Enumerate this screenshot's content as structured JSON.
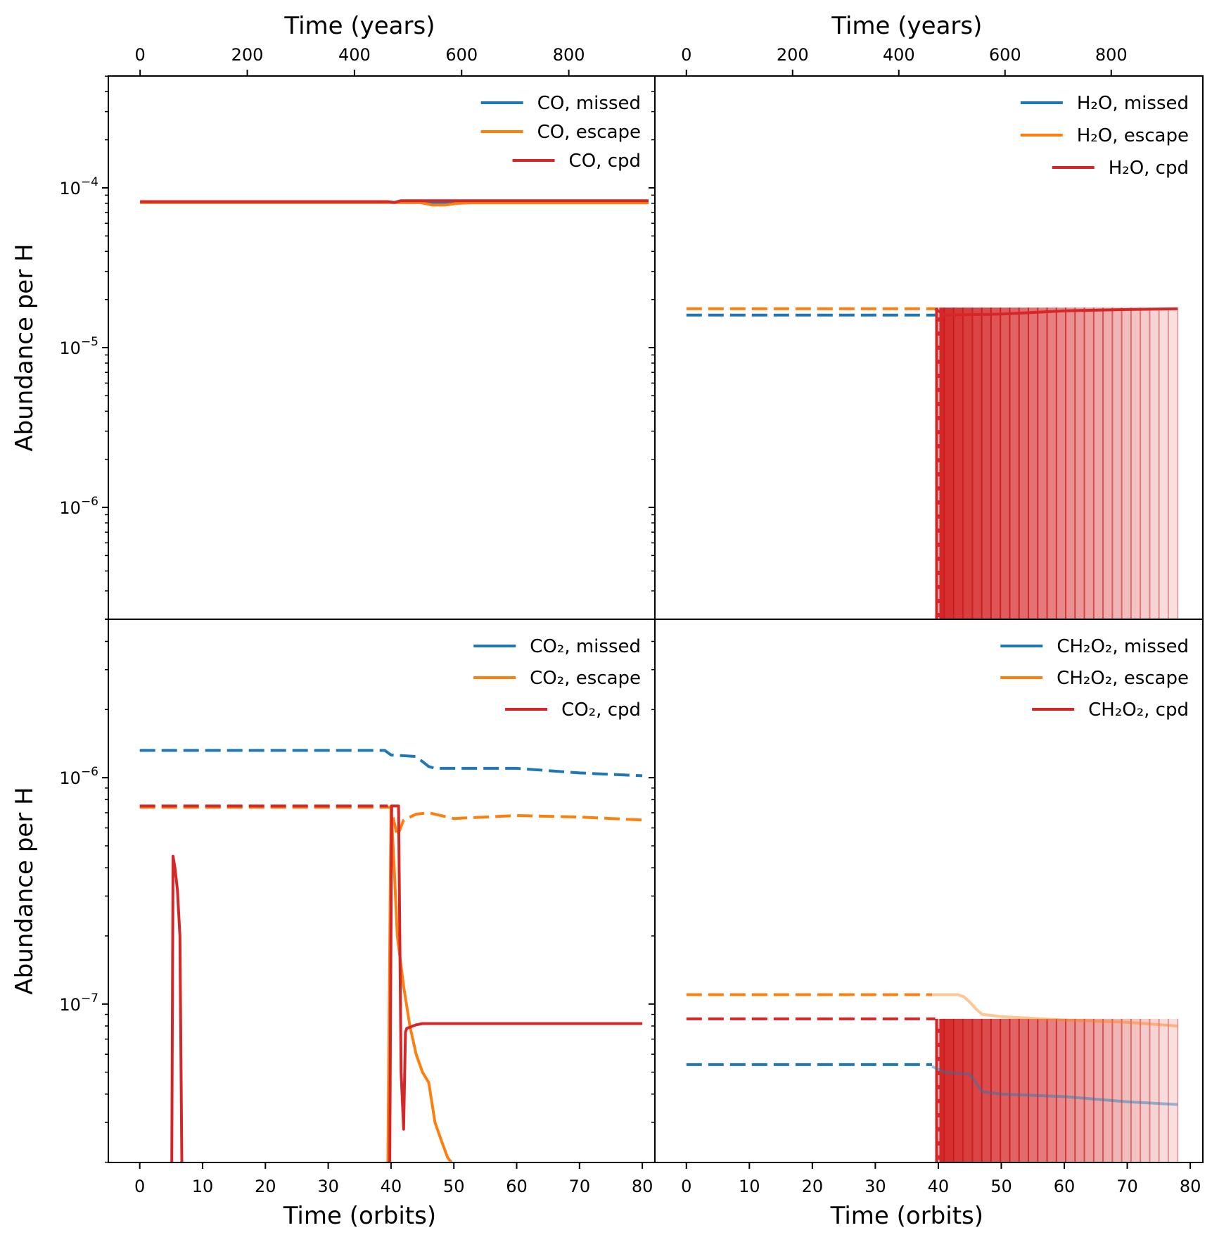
{
  "figure": {
    "top_axis_label": "Time (years)",
    "bottom_axis_label": "Time (orbits)",
    "y_axis_label": "Abundance per H",
    "years_ticks": [
      0,
      200,
      400,
      600,
      800
    ],
    "orbit_ticks": [
      0,
      10,
      20,
      30,
      40,
      50,
      60,
      70,
      80
    ],
    "colors": {
      "missed": "#1f77b4",
      "escape": "#ff7f0e",
      "cpd": "#d62728"
    }
  },
  "chart_data": [
    {
      "id": "co",
      "type": "line",
      "xlabel": "Time (orbits)",
      "top_xlabel": "Time (years)",
      "ylabel": "Abundance per H",
      "xlim": [
        -5,
        81
      ],
      "ylim_log10": [
        -6.7,
        -3.3
      ],
      "y_ticks": [
        {
          "exp": -4,
          "label": "−4"
        },
        {
          "exp": -5,
          "label": "−5"
        },
        {
          "exp": -6,
          "label": "−6"
        }
      ],
      "legend": [
        "CO, missed",
        "CO, escape",
        "CO, cpd"
      ],
      "series": [
        {
          "name": "CO, missed",
          "role": "missed",
          "dash": false,
          "x": [
            0,
            80
          ],
          "y": [
            8.1e-05,
            8.1e-05
          ]
        },
        {
          "name": "CO, escape",
          "role": "escape",
          "dash": false,
          "x": [
            0,
            44,
            46,
            48,
            50,
            52,
            80
          ],
          "y": [
            8.1e-05,
            8.1e-05,
            7.8e-05,
            7.8e-05,
            8e-05,
            8.05e-05,
            8.05e-05
          ]
        },
        {
          "name": "CO, cpd",
          "role": "cpd",
          "dash": false,
          "x": [
            0,
            39,
            40,
            41,
            80
          ],
          "y": [
            8.2e-05,
            8.2e-05,
            8.1e-05,
            8.3e-05,
            8.3e-05
          ]
        }
      ]
    },
    {
      "id": "h2o",
      "type": "line",
      "xlabel": "Time (orbits)",
      "top_xlabel": "Time (years)",
      "ylabel": "Abundance per H",
      "xlim": [
        -5,
        82
      ],
      "ylim_log10": [
        -6.7,
        -3.3
      ],
      "y_ticks": [],
      "legend": [
        "H₂O, missed",
        "H₂O, escape",
        "H₂O, cpd"
      ],
      "series": [
        {
          "name": "H₂O, missed",
          "role": "missed",
          "dash": true,
          "x": [
            0,
            39.5
          ],
          "y": [
            1.6e-05,
            1.6e-05
          ]
        },
        {
          "name": "H₂O, escape",
          "role": "escape",
          "dash": true,
          "x": [
            0,
            39.5
          ],
          "y": [
            1.75e-05,
            1.75e-05
          ]
        },
        {
          "name": "H₂O, cpd",
          "role": "cpd",
          "dash": false,
          "x": [
            39.5,
            41,
            50,
            60,
            70,
            78
          ],
          "y": [
            1.75e-05,
            1.6e-05,
            1.62e-05,
            1.7e-05,
            1.73e-05,
            1.75e-05
          ]
        }
      ],
      "cpd_band": {
        "x_start": 39.5,
        "x_end": 78,
        "top": 1.78e-05
      }
    },
    {
      "id": "co2",
      "type": "line",
      "xlabel": "Time (orbits)",
      "top_xlabel": "Time (years)",
      "ylabel": "Abundance per H",
      "xlim": [
        -5,
        82
      ],
      "ylim_log10": [
        -7.7,
        -5.3
      ],
      "y_ticks": [
        {
          "exp": -6,
          "label": "−6"
        },
        {
          "exp": -7,
          "label": "−7"
        }
      ],
      "legend": [
        "CO₂, missed",
        "CO₂, escape",
        "CO₂, cpd"
      ],
      "series": [
        {
          "name": "CO₂, missed",
          "role": "missed",
          "dash": true,
          "x": [
            0,
            39,
            40,
            44,
            46,
            47,
            60,
            70,
            80
          ],
          "y": [
            1.32e-06,
            1.32e-06,
            1.26e-06,
            1.24e-06,
            1.12e-06,
            1.1e-06,
            1.1e-06,
            1.05e-06,
            1.02e-06
          ]
        },
        {
          "name": "CO₂, escape",
          "role": "escape",
          "dash": true,
          "x": [
            0,
            40,
            41,
            42,
            44,
            46,
            50,
            60,
            70,
            80
          ],
          "y": [
            7.4e-07,
            7.4e-07,
            5.5e-07,
            6.5e-07,
            6.9e-07,
            7e-07,
            6.6e-07,
            6.8e-07,
            6.7e-07,
            6.5e-07
          ]
        },
        {
          "name": "CO₂, escape (early)",
          "role": "escape",
          "dash": false,
          "x": [
            39.5,
            40,
            40.5,
            41,
            42,
            43,
            44,
            45,
            46,
            47,
            48,
            49,
            49.6
          ],
          "y": [
            2e-08,
            7.5e-07,
            4e-07,
            2e-07,
            1.2e-07,
            8e-08,
            6e-08,
            5e-08,
            4.5e-08,
            3e-08,
            2.5e-08,
            2.1e-08,
            2e-08
          ]
        },
        {
          "name": "CO₂, cpd",
          "role": "cpd",
          "dash": true,
          "x": [
            0,
            5.2,
            6.5,
            39.5
          ],
          "y": [
            7.5e-07,
            7.5e-07,
            7.5e-07,
            7.5e-07
          ]
        },
        {
          "name": "CO₂, cpd (spike 1)",
          "role": "cpd",
          "dash": false,
          "x": [
            5.1,
            5.3,
            5.6,
            6.0,
            6.4,
            6.7
          ],
          "y": [
            2e-08,
            4.5e-07,
            4e-07,
            3.2e-07,
            2e-07,
            2e-08
          ]
        },
        {
          "name": "CO₂, cpd (spike 2)",
          "role": "cpd",
          "dash": false,
          "x": [
            39.8,
            40.1,
            41.2,
            41.6,
            42.0,
            42.3,
            42.5,
            43,
            44,
            45,
            80
          ],
          "y": [
            2e-08,
            7.5e-07,
            7.5e-07,
            5e-08,
            2.8e-08,
            7.5e-08,
            7.8e-08,
            7.9e-08,
            8.1e-08,
            8.2e-08,
            8.2e-08
          ]
        }
      ]
    },
    {
      "id": "ch2o2",
      "type": "line",
      "xlabel": "Time (orbits)",
      "top_xlabel": "Time (years)",
      "ylabel": "Abundance per H",
      "xlim": [
        -5,
        82
      ],
      "ylim_log10": [
        -7.7,
        -5.3
      ],
      "y_ticks": [],
      "legend": [
        "CH₂O₂, missed",
        "CH₂O₂, escape",
        "CH₂O₂, cpd"
      ],
      "series": [
        {
          "name": "CH₂O₂, missed",
          "role": "missed",
          "dash": true,
          "x": [
            0,
            39
          ],
          "y": [
            5.4e-08,
            5.4e-08
          ]
        },
        {
          "name": "CH₂O₂, missed (late)",
          "role": "missed",
          "dash": false,
          "faded": true,
          "x": [
            39,
            41,
            45,
            47,
            50,
            60,
            70,
            78
          ],
          "y": [
            5.3e-08,
            5e-08,
            4.9e-08,
            4.1e-08,
            4e-08,
            3.9e-08,
            3.7e-08,
            3.6e-08
          ]
        },
        {
          "name": "CH₂O₂, escape",
          "role": "escape",
          "dash": true,
          "x": [
            0,
            39
          ],
          "y": [
            1.1e-07,
            1.1e-07
          ]
        },
        {
          "name": "CH₂O₂, escape (late)",
          "role": "escape",
          "dash": false,
          "faded": true,
          "x": [
            39,
            43,
            44,
            45,
            46,
            47,
            50,
            60,
            70,
            78
          ],
          "y": [
            1.1e-07,
            1.1e-07,
            1.08e-07,
            1.02e-07,
            9.5e-08,
            9e-08,
            8.8e-08,
            8.5e-08,
            8.3e-08,
            8e-08
          ]
        },
        {
          "name": "CH₂O₂, cpd",
          "role": "cpd",
          "dash": true,
          "x": [
            0,
            39.5
          ],
          "y": [
            8.6e-08,
            8.6e-08
          ]
        }
      ],
      "cpd_band": {
        "x_start": 39.5,
        "x_end": 78,
        "top": 8.6e-08
      }
    }
  ]
}
